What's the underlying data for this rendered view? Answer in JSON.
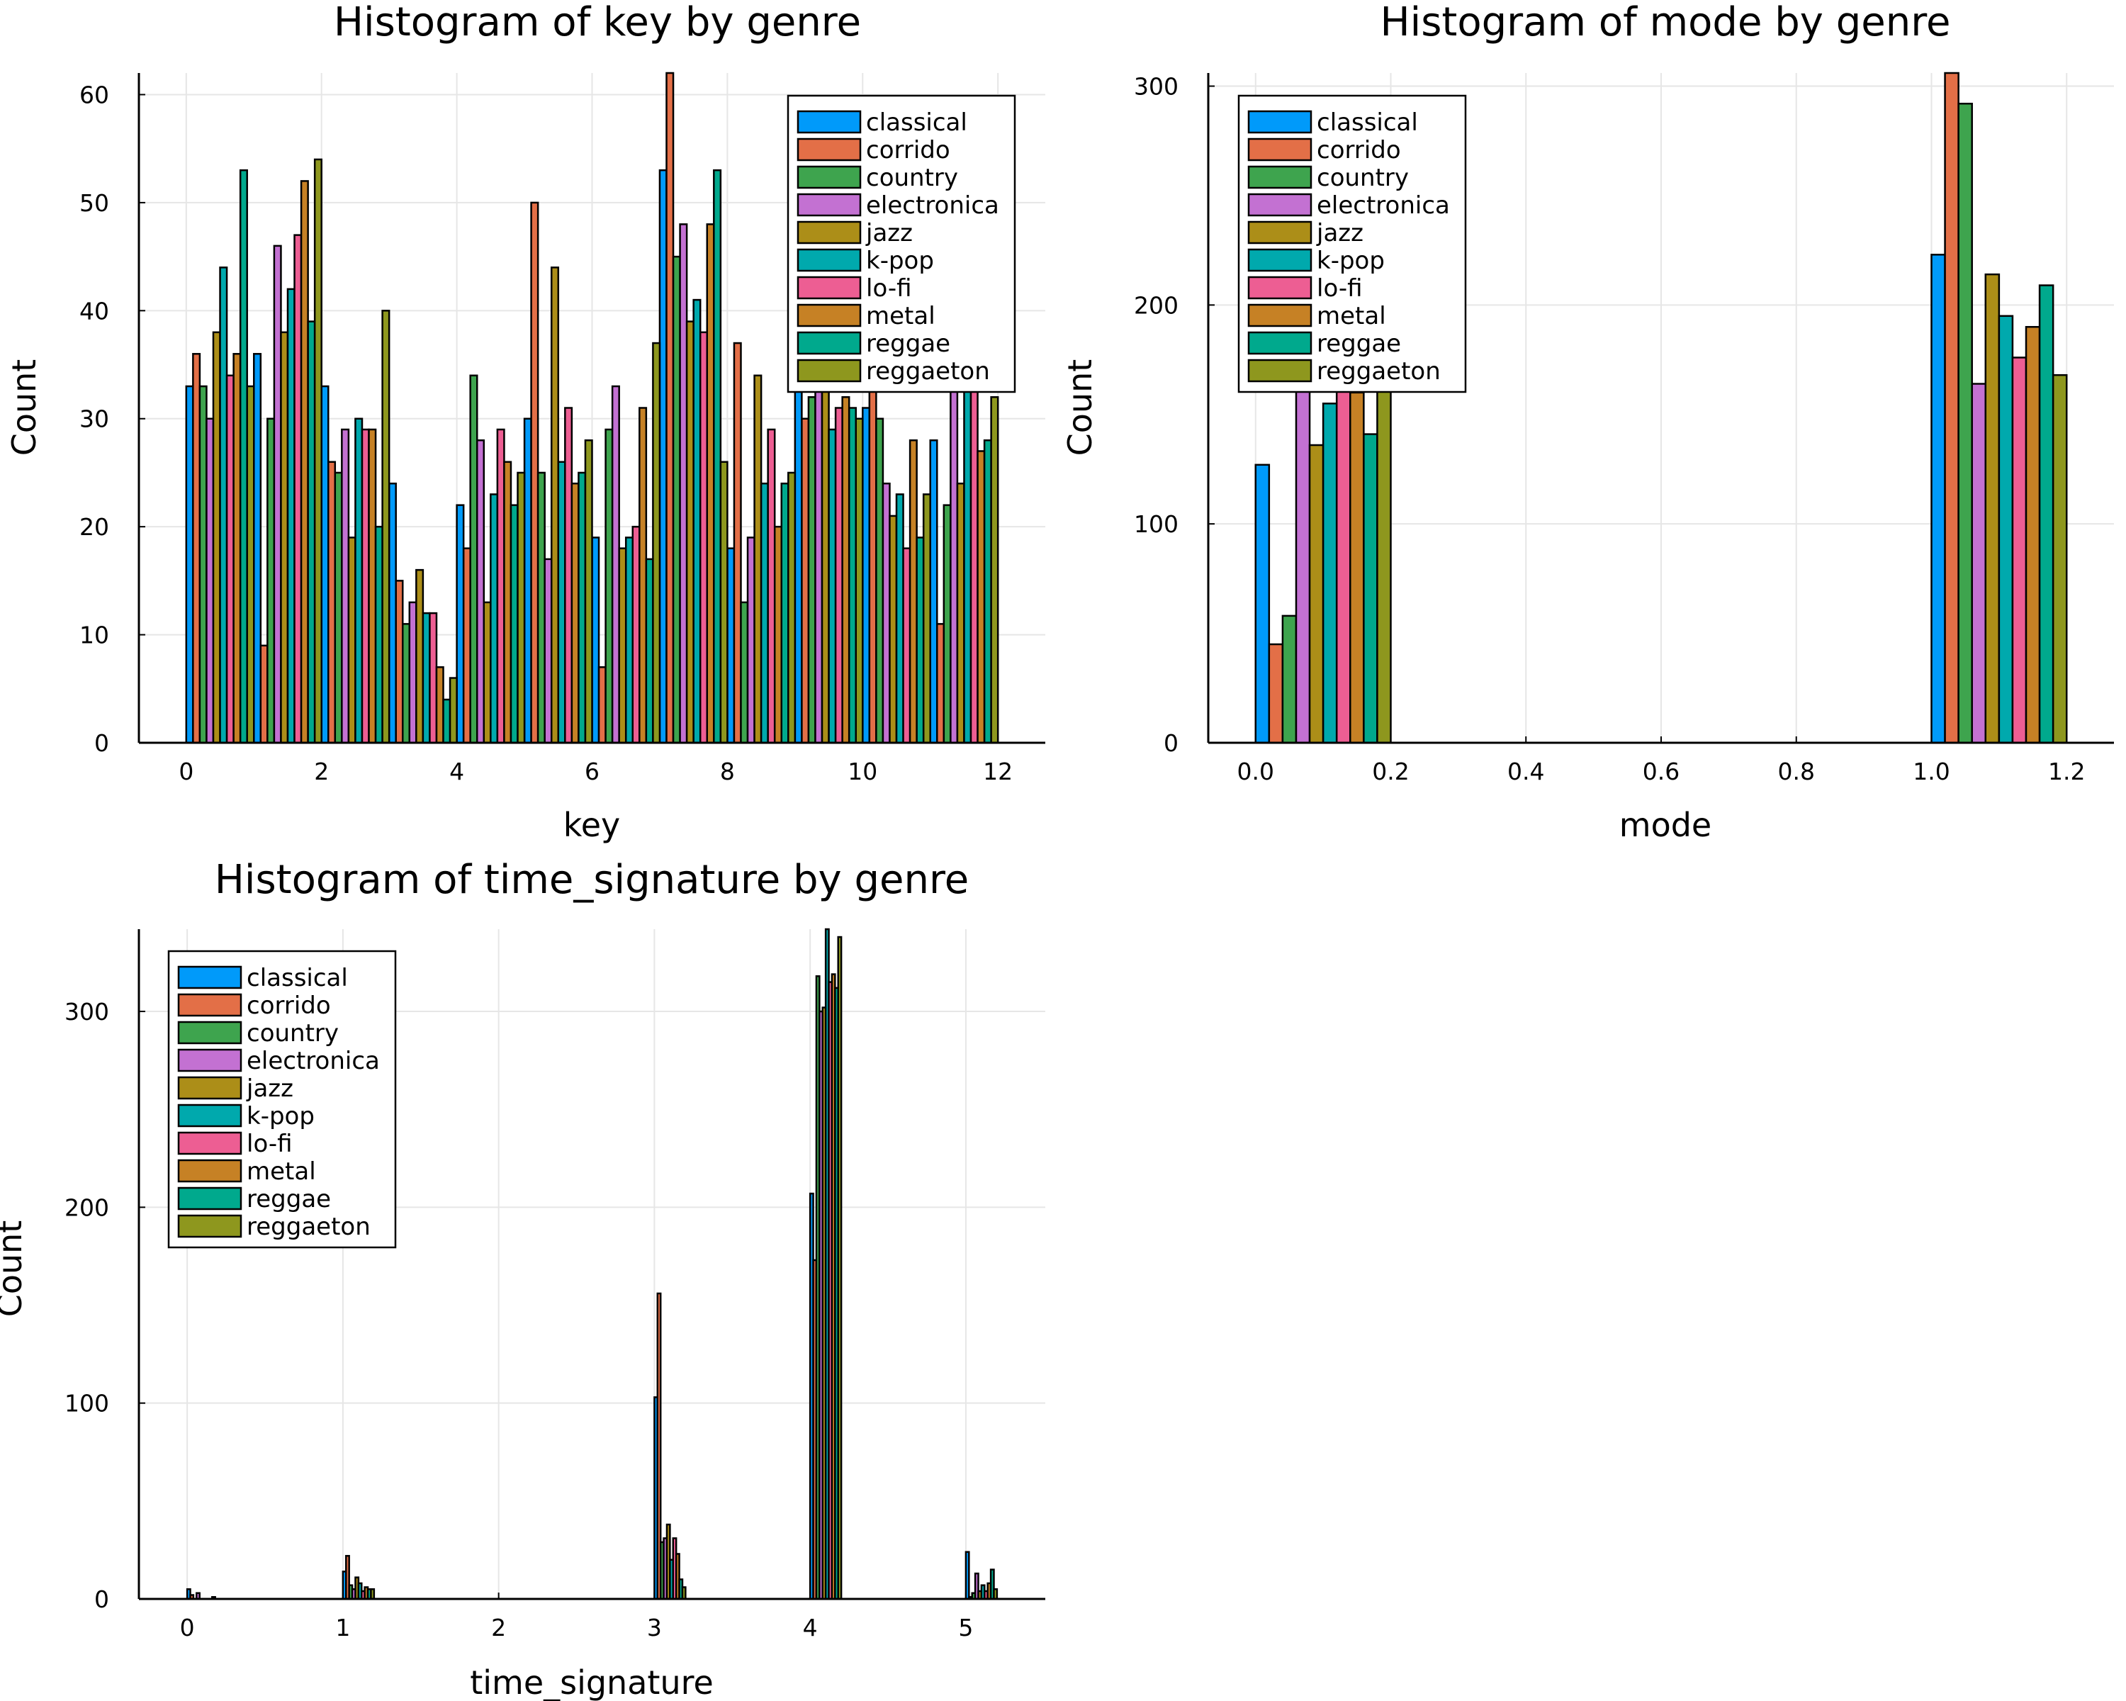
{
  "colors": [
    "#009AFA",
    "#E36F47",
    "#3EA44E",
    "#C371D2",
    "#AC8E18",
    "#00A9AD",
    "#ED5E93",
    "#C68125",
    "#00A98D",
    "#8E971E"
  ],
  "chart_data": [
    {
      "type": "bar",
      "title": "Histogram of key by genre",
      "xlabel": "key",
      "ylabel": "Count",
      "xlim": [
        -0.7,
        12.7
      ],
      "ylim": [
        0,
        62
      ],
      "xticks": [
        0,
        2,
        4,
        6,
        8,
        10,
        12
      ],
      "yticks": [
        0,
        10,
        20,
        30,
        40,
        50,
        60
      ],
      "group_width": 1.0,
      "grid": true,
      "legend_position": "top-right",
      "x": [
        0,
        1,
        2,
        3,
        4,
        5,
        6,
        7,
        8,
        9,
        10,
        11
      ],
      "series": [
        {
          "name": "classical",
          "values": [
            33,
            36,
            33,
            24,
            22,
            30,
            19,
            53,
            18,
            35,
            31,
            28
          ]
        },
        {
          "name": "corrido",
          "values": [
            36,
            9,
            26,
            15,
            18,
            50,
            7,
            62,
            37,
            30,
            37,
            11
          ]
        },
        {
          "name": "country",
          "values": [
            33,
            30,
            25,
            11,
            34,
            25,
            29,
            45,
            13,
            32,
            30,
            22
          ]
        },
        {
          "name": "electronica",
          "values": [
            30,
            46,
            29,
            13,
            28,
            17,
            33,
            48,
            19,
            40,
            24,
            40
          ]
        },
        {
          "name": "jazz",
          "values": [
            38,
            38,
            19,
            16,
            13,
            44,
            18,
            39,
            34,
            40,
            21,
            24
          ]
        },
        {
          "name": "k-pop",
          "values": [
            44,
            42,
            30,
            12,
            23,
            26,
            19,
            41,
            24,
            29,
            23,
            33
          ]
        },
        {
          "name": "lo-fi",
          "values": [
            34,
            47,
            29,
            12,
            29,
            31,
            20,
            38,
            29,
            31,
            18,
            33
          ]
        },
        {
          "name": "metal",
          "values": [
            36,
            52,
            29,
            7,
            26,
            24,
            31,
            48,
            20,
            32,
            28,
            27
          ]
        },
        {
          "name": "reggae",
          "values": [
            53,
            39,
            20,
            4,
            22,
            25,
            17,
            53,
            24,
            31,
            19,
            28
          ]
        },
        {
          "name": "reggaeton",
          "values": [
            33,
            54,
            40,
            6,
            25,
            28,
            37,
            26,
            25,
            30,
            23,
            32
          ]
        }
      ]
    },
    {
      "type": "bar",
      "title": "Histogram of mode by genre",
      "xlabel": "mode",
      "ylabel": "Count",
      "xlim": [
        -0.07,
        1.27
      ],
      "ylim": [
        0,
        306
      ],
      "xticks": [
        0.0,
        0.2,
        0.4,
        0.6,
        0.8,
        1.0,
        1.2
      ],
      "xtick_labels": [
        "0.0",
        "0.2",
        "0.4",
        "0.6",
        "0.8",
        "1.0",
        "1.2"
      ],
      "yticks": [
        0,
        100,
        200,
        300
      ],
      "group_width": 0.2,
      "grid": true,
      "legend_position": "top-left",
      "x": [
        0,
        1
      ],
      "series": [
        {
          "name": "classical",
          "values": [
            127,
            223
          ]
        },
        {
          "name": "corrido",
          "values": [
            45,
            306
          ]
        },
        {
          "name": "country",
          "values": [
            58,
            292
          ]
        },
        {
          "name": "electronica",
          "values": [
            170,
            164
          ]
        },
        {
          "name": "jazz",
          "values": [
            136,
            214
          ]
        },
        {
          "name": "k-pop",
          "values": [
            155,
            195
          ]
        },
        {
          "name": "lo-fi",
          "values": [
            175,
            176
          ]
        },
        {
          "name": "metal",
          "values": [
            160,
            190
          ]
        },
        {
          "name": "reggae",
          "values": [
            141,
            209
          ]
        },
        {
          "name": "reggaeton",
          "values": [
            170,
            168
          ]
        }
      ]
    },
    {
      "type": "bar",
      "title": "Histogram of time_signature by genre",
      "xlabel": "time_signature",
      "ylabel": "Count",
      "xlim": [
        -0.31,
        5.51
      ],
      "ylim": [
        0,
        342
      ],
      "xticks": [
        0,
        1,
        2,
        3,
        4,
        5
      ],
      "yticks": [
        0,
        100,
        200,
        300
      ],
      "group_width": 0.2,
      "grid": true,
      "legend_position": "top-left",
      "x": [
        0,
        1,
        3,
        4,
        5
      ],
      "series": [
        {
          "name": "classical",
          "values": [
            5,
            14,
            103,
            207,
            24
          ]
        },
        {
          "name": "corrido",
          "values": [
            2,
            22,
            156,
            173,
            1
          ]
        },
        {
          "name": "country",
          "values": [
            0,
            7,
            29,
            318,
            3
          ]
        },
        {
          "name": "electronica",
          "values": [
            3,
            5,
            31,
            300,
            13
          ]
        },
        {
          "name": "jazz",
          "values": [
            0,
            11,
            38,
            302,
            4
          ]
        },
        {
          "name": "k-pop",
          "values": [
            0,
            8,
            20,
            342,
            7
          ]
        },
        {
          "name": "lo-fi",
          "values": [
            0,
            4,
            31,
            315,
            4
          ]
        },
        {
          "name": "metal",
          "values": [
            0,
            6,
            23,
            319,
            8
          ]
        },
        {
          "name": "reggae",
          "values": [
            1,
            5,
            10,
            312,
            15
          ]
        },
        {
          "name": "reggaeton",
          "values": [
            0,
            5,
            6,
            338,
            5
          ]
        }
      ]
    }
  ]
}
